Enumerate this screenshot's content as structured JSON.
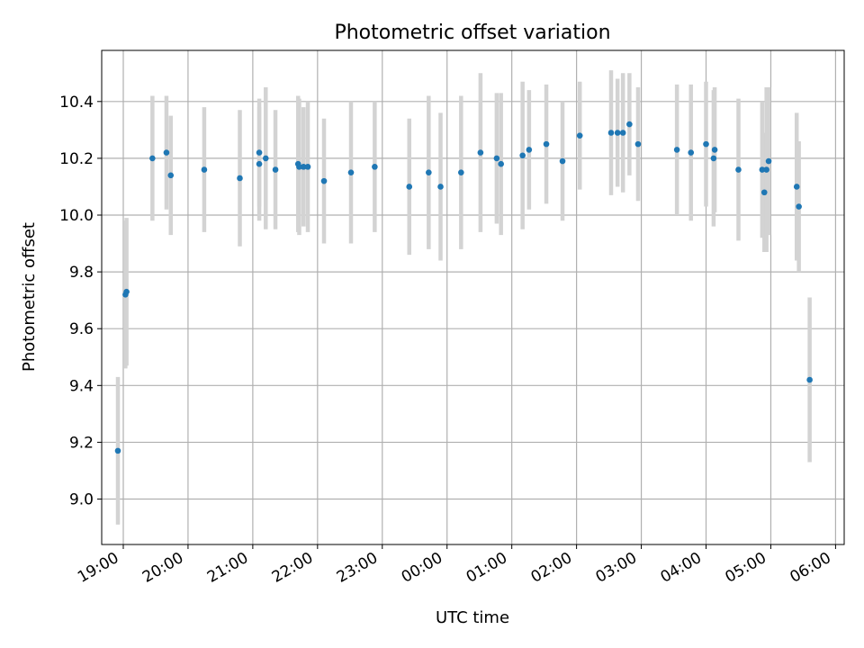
{
  "chart_data": {
    "type": "scatter",
    "title": "Photometric offset variation",
    "xlabel": "UTC time",
    "ylabel": "Photometric offset",
    "x_ticks": [
      "19:00",
      "20:00",
      "21:00",
      "22:00",
      "23:00",
      "00:00",
      "01:00",
      "02:00",
      "03:00",
      "04:00",
      "05:00",
      "06:00"
    ],
    "y_ticks": [
      "9.0",
      "9.2",
      "9.4",
      "9.6",
      "9.8",
      "10.0",
      "10.2",
      "10.4"
    ],
    "xlim": [
      "18:40",
      "06:08"
    ],
    "ylim": [
      8.84,
      10.58
    ],
    "grid": true,
    "colors": {
      "point": "#1f77b4",
      "error_bar": "#d3d3d3",
      "grid": "#b0b0b0"
    },
    "series": [
      {
        "x": [
          "18:55",
          "19:02",
          "19:03",
          "19:27",
          "19:40",
          "19:44",
          "20:15",
          "20:48",
          "21:06",
          "21:06",
          "21:12",
          "21:21",
          "21:42",
          "21:43",
          "21:47",
          "21:51",
          "22:06",
          "22:31",
          "22:53",
          "23:25",
          "23:43",
          "23:54",
          "00:13",
          "00:31",
          "00:46",
          "00:50",
          "01:10",
          "01:16",
          "01:32",
          "01:47",
          "02:03",
          "02:32",
          "02:38",
          "02:43",
          "02:49",
          "02:57",
          "03:33",
          "03:46",
          "04:00",
          "04:07",
          "04:08",
          "04:30",
          "04:52",
          "04:54",
          "04:56",
          "04:58",
          "05:24",
          "05:26",
          "05:36"
        ],
        "y": [
          9.17,
          9.72,
          9.73,
          10.2,
          10.22,
          10.14,
          10.16,
          10.13,
          10.22,
          10.18,
          10.2,
          10.16,
          10.18,
          10.17,
          10.17,
          10.17,
          10.12,
          10.15,
          10.17,
          10.1,
          10.15,
          10.1,
          10.15,
          10.22,
          10.2,
          10.18,
          10.21,
          10.23,
          10.25,
          10.19,
          10.28,
          10.29,
          10.29,
          10.29,
          10.32,
          10.25,
          10.23,
          10.22,
          10.25,
          10.2,
          10.23,
          10.16,
          10.16,
          10.08,
          10.16,
          10.19,
          10.1,
          10.03,
          9.42
        ],
        "y_err": [
          0.26,
          0.26,
          0.26,
          0.22,
          0.2,
          0.21,
          0.22,
          0.24,
          0.19,
          0.2,
          0.25,
          0.21,
          0.24,
          0.24,
          0.21,
          0.23,
          0.22,
          0.25,
          0.23,
          0.24,
          0.27,
          0.26,
          0.27,
          0.28,
          0.23,
          0.25,
          0.26,
          0.21,
          0.21,
          0.21,
          0.19,
          0.22,
          0.19,
          0.21,
          0.18,
          0.2,
          0.23,
          0.24,
          0.22,
          0.24,
          0.22,
          0.25,
          0.24,
          0.21,
          0.29,
          0.26,
          0.26,
          0.23,
          0.29
        ]
      }
    ]
  }
}
